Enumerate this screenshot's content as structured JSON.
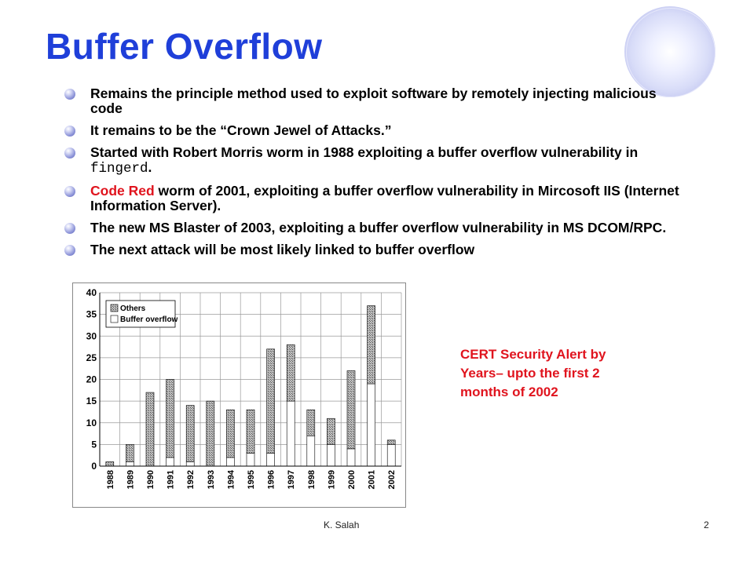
{
  "slide": {
    "title": "Buffer Overflow",
    "bullets": {
      "b1": "Remains the principle method used to exploit software by remotely injecting malicious code",
      "b2": "It remains to be the “Crown Jewel of Attacks.”",
      "b3_pre": "Started with Robert Morris worm in 1988 exploiting a buffer overflow vulnerability in ",
      "b3_code": "fingerd",
      "b3_post": ".",
      "b4_red": "Code Red",
      "b4_rest": " worm of 2001, exploiting a buffer overflow vulnerability in Mircosoft IIS (Internet Information Server).",
      "b5": "The  new MS Blaster of 2003, exploiting a buffer overflow vulnerability in MS DCOM/RPC.",
      "b6": "The next attack will be most likely linked to buffer overflow"
    },
    "note": "CERT Security Alert by Years– upto the first 2 months of 2002",
    "footer_author": "K. Salah",
    "page_number": "2",
    "colors": {
      "title": "#1f3fd9",
      "accent_red": "#e0141e"
    }
  },
  "chart_data": {
    "type": "bar",
    "stacked": true,
    "categories": [
      "1988",
      "1989",
      "1990",
      "1991",
      "1992",
      "1993",
      "1994",
      "1995",
      "1996",
      "1997",
      "1998",
      "1999",
      "2000",
      "2001",
      "2002"
    ],
    "series": [
      {
        "name": "Others",
        "values": [
          1,
          4,
          17,
          18,
          13,
          15,
          11,
          10,
          24,
          13,
          6,
          6,
          18,
          18,
          1
        ]
      },
      {
        "name": "Buffer overflow",
        "values": [
          0,
          1,
          0,
          2,
          1,
          0,
          2,
          3,
          3,
          15,
          7,
          5,
          4,
          19,
          5
        ]
      }
    ],
    "totals": [
      1,
      5,
      17,
      20,
      14,
      15,
      13,
      13,
      27,
      28,
      13,
      11,
      22,
      37,
      6
    ],
    "ylim": [
      0,
      40
    ],
    "yticks": [
      "0",
      "5",
      "10",
      "15",
      "20",
      "25",
      "30",
      "35",
      "40"
    ],
    "legend": "top-left",
    "grid": true
  }
}
